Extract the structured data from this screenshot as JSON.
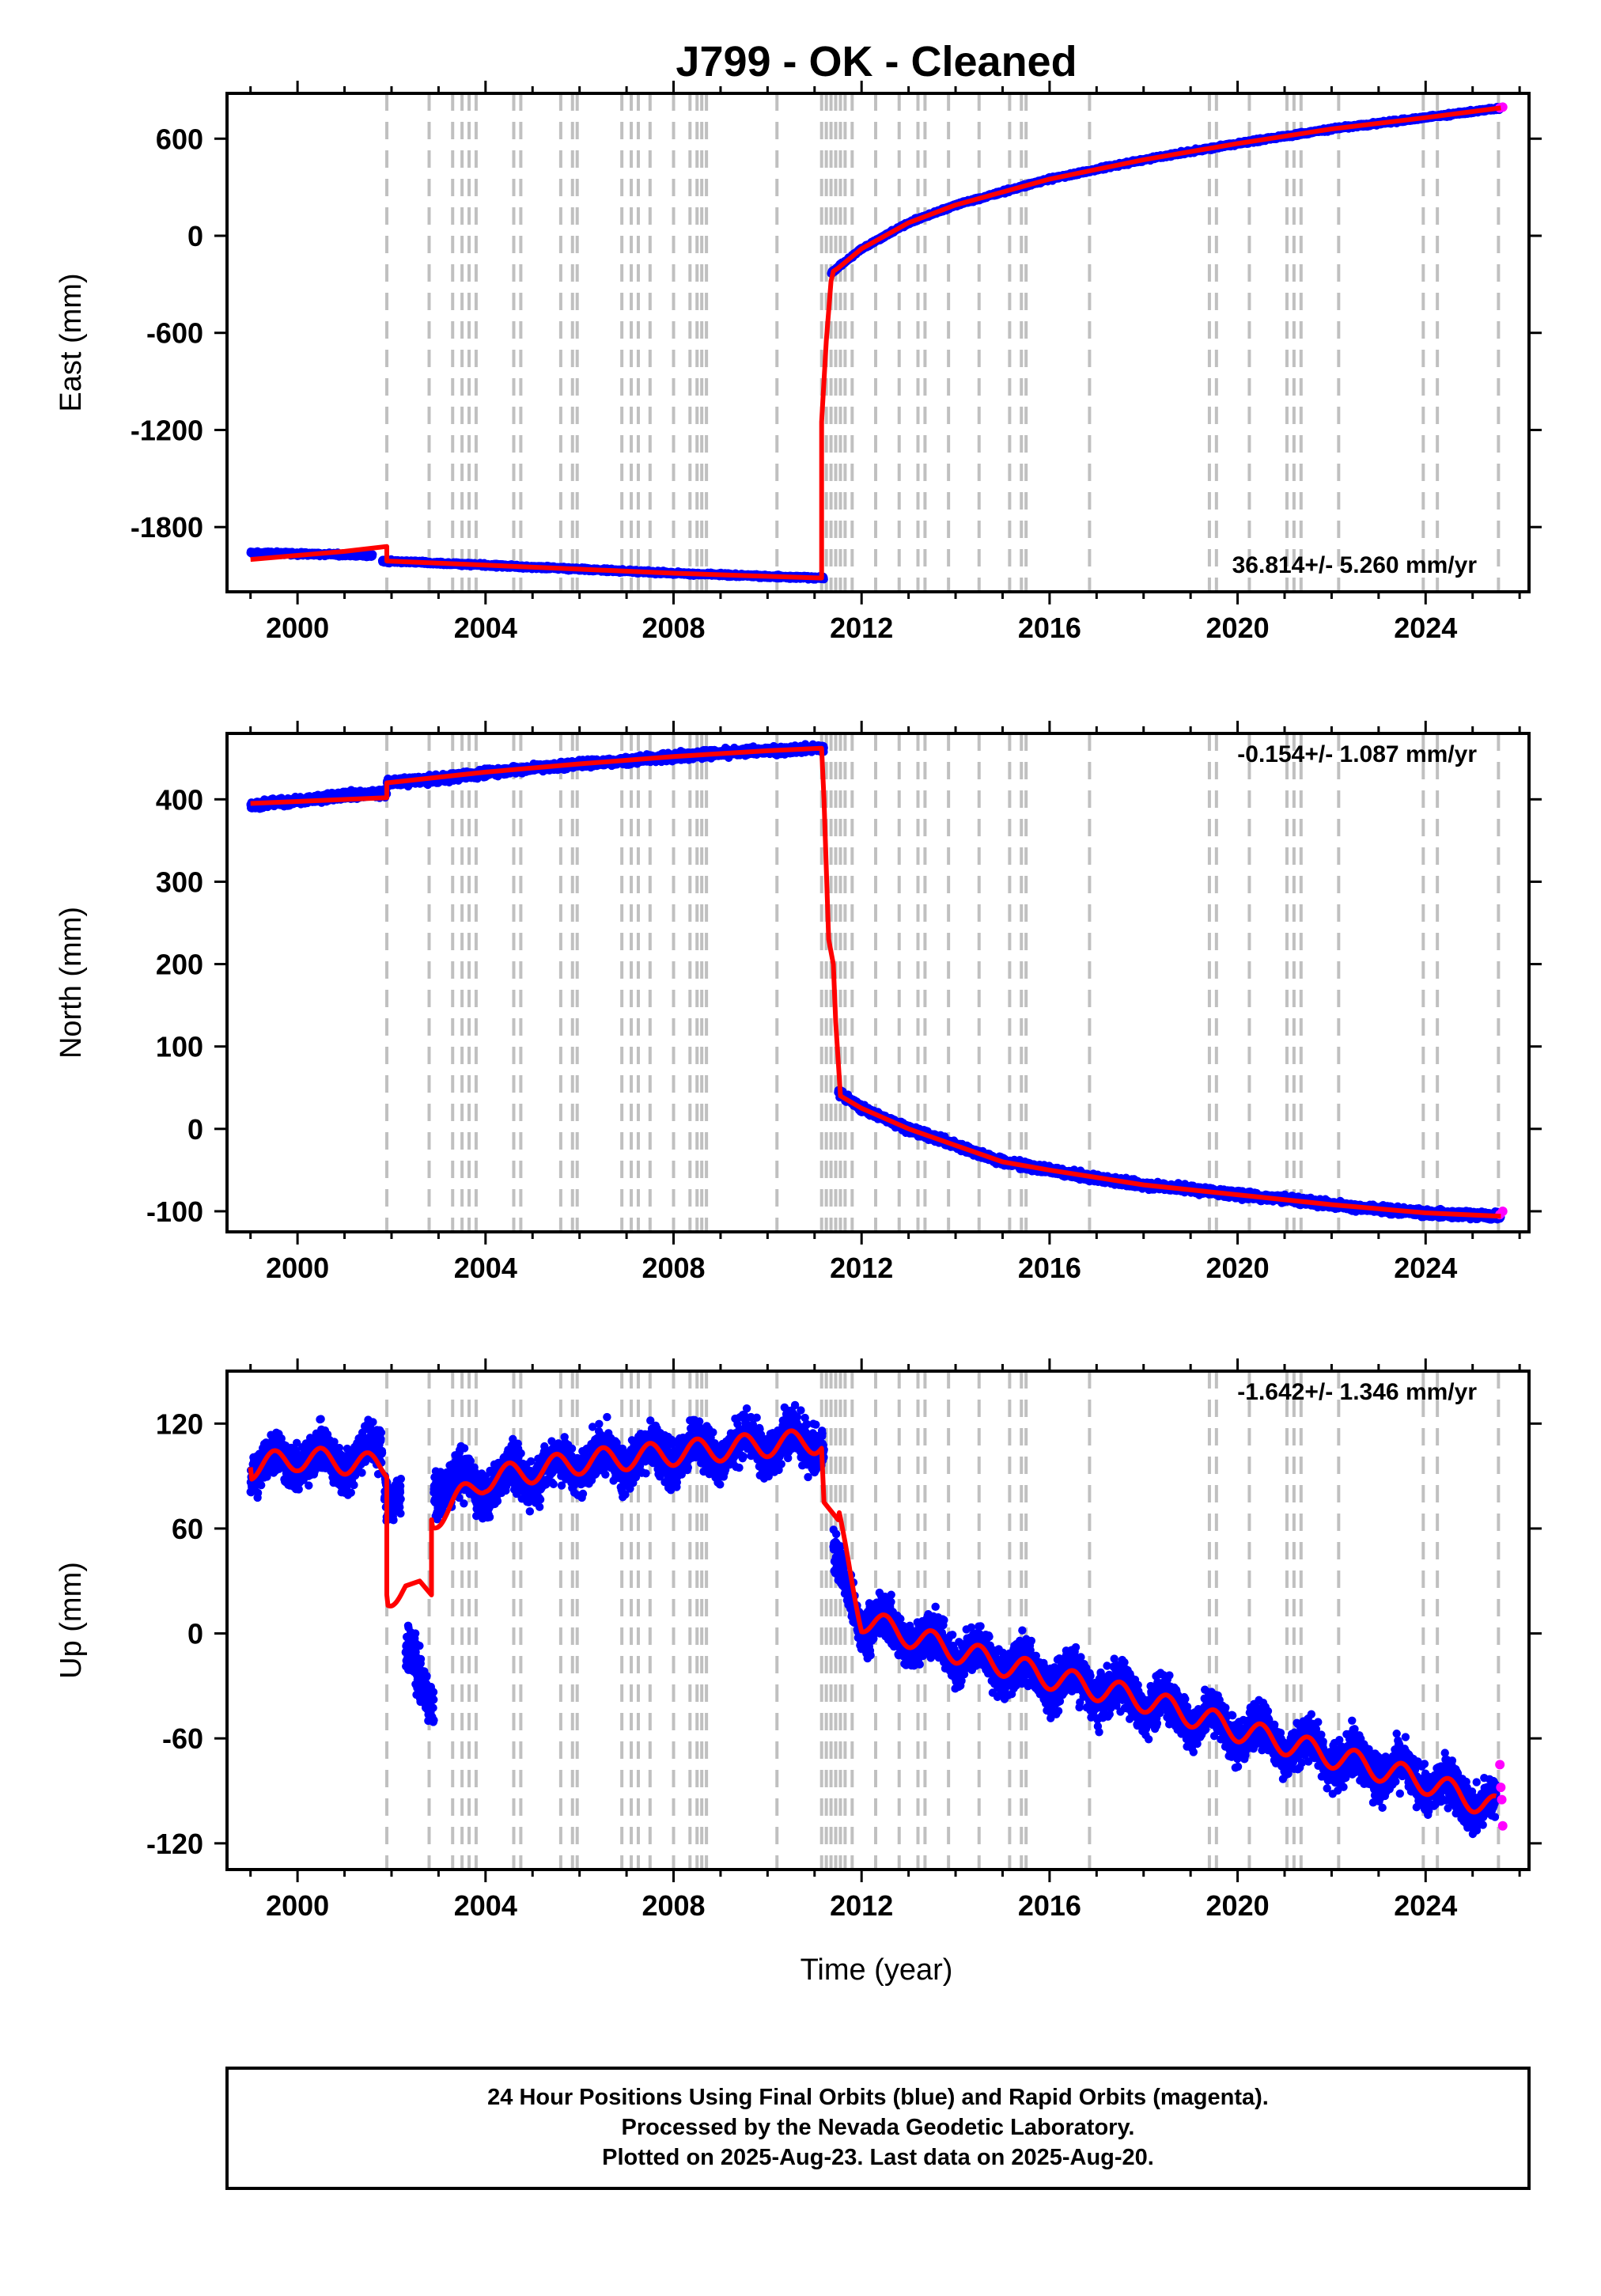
{
  "title": "J799  - OK - Cleaned",
  "xlabel": "Time (year)",
  "xticks": [
    2000,
    2004,
    2008,
    2012,
    2016,
    2020,
    2024
  ],
  "xlim": [
    1998.5,
    2026.2
  ],
  "colors": {
    "final_orbits": "#0000ff",
    "rapid_orbits": "#ff00ff",
    "model": "#ff0000",
    "event_lines": "#c0c0c0",
    "frame": "#000000"
  },
  "event_lines": [
    2001.9,
    2002.8,
    2003.3,
    2003.5,
    2003.65,
    2003.8,
    2004.6,
    2004.75,
    2005.6,
    2005.85,
    2005.95,
    2006.9,
    2007.1,
    2007.25,
    2007.5,
    2008.0,
    2008.35,
    2008.5,
    2008.6,
    2008.7,
    2010.2,
    2011.15,
    2011.25,
    2011.35,
    2011.45,
    2011.55,
    2011.65,
    2011.8,
    2012.3,
    2012.8,
    2013.2,
    2013.35,
    2013.85,
    2014.5,
    2015.15,
    2015.4,
    2015.5,
    2016.85,
    2019.4,
    2019.55,
    2020.25,
    2021.05,
    2021.2,
    2021.35,
    2022.15,
    2023.95,
    2024.25,
    2025.55
  ],
  "chart_data": [
    {
      "type": "scatter",
      "component": "east",
      "ylabel": "East (mm)",
      "yticks": [
        600,
        0,
        -600,
        -1200,
        -1800
      ],
      "ylim": [
        -2200,
        880
      ],
      "rate_label": "36.814+/- 5.260 mm/yr",
      "series": [
        {
          "name": "Final Orbits",
          "data_segments": [
            {
              "x": [
                1999.0,
                2000.0,
                2001.0,
                2001.6
              ],
              "y": [
                -1960,
                -1965,
                -1970,
                -1975
              ]
            },
            {
              "x": [
                2001.8,
                2004.0,
                2006.0,
                2008.0,
                2009.5,
                2011.2
              ],
              "y": [
                -2010,
                -2035,
                -2060,
                -2085,
                -2100,
                -2115
              ]
            },
            {
              "x": [
                2011.35,
                2012.0,
                2013.0,
                2014.0,
                2016.0,
                2018.0,
                2020.0,
                2022.0,
                2024.0,
                2025.6
              ],
              "y": [
                -230,
                -80,
                80,
                190,
                350,
                470,
                570,
                660,
                730,
                790
              ]
            }
          ]
        },
        {
          "name": "Rapid Orbits",
          "x": [
            2025.58,
            2025.64
          ],
          "y": [
            790,
            795
          ]
        },
        {
          "name": "Model",
          "x": [
            1999.0,
            2000.0,
            2001.0,
            2001.9,
            2001.9,
            2004.0,
            2006.0,
            2008.0,
            2009.5,
            2011.15,
            2011.15,
            2011.25,
            2011.35,
            2011.4,
            2011.5,
            2012.0,
            2013.0,
            2014.0,
            2016.0,
            2018.0,
            2020.0,
            2022.0,
            2024.0,
            2025.6
          ],
          "y": [
            -2000,
            -1975,
            -1950,
            -1920,
            -2010,
            -2035,
            -2060,
            -2085,
            -2100,
            -2115,
            -1150,
            -650,
            -280,
            -220,
            -200,
            -80,
            80,
            190,
            350,
            470,
            570,
            660,
            730,
            790
          ]
        }
      ]
    },
    {
      "type": "scatter",
      "component": "north",
      "ylabel": "North (mm)",
      "yticks": [
        400,
        300,
        200,
        100,
        0,
        -100
      ],
      "ylim": [
        -125,
        480
      ],
      "rate_label": "-0.154+/- 1.087 mm/yr",
      "series": [
        {
          "name": "Final Orbits",
          "data_segments": [
            {
              "x": [
                1999.0,
                2000.0,
                2001.0,
                2001.9
              ],
              "y": [
                393,
                398,
                405,
                408
              ]
            },
            {
              "x": [
                2001.9,
                2003.0,
                2004.0,
                2005.0,
                2006.0,
                2007.0,
                2008.0,
                2009.0,
                2010.0,
                2011.2
              ],
              "y": [
                420,
                425,
                432,
                438,
                443,
                447,
                452,
                456,
                459,
                462
              ]
            },
            {
              "x": [
                2011.5,
                2012.0,
                2013.0,
                2014.0,
                2015.0,
                2016.0,
                2017.0,
                2018.0,
                2019.0,
                2020.0,
                2021.0,
                2022.0,
                2023.0,
                2024.0,
                2025.6
              ],
              "y": [
                45,
                25,
                0,
                -20,
                -40,
                -50,
                -60,
                -68,
                -73,
                -80,
                -85,
                -92,
                -98,
                -102,
                -106
              ]
            }
          ]
        },
        {
          "name": "Rapid Orbits",
          "x": [
            2025.58,
            2025.64
          ],
          "y": [
            -104,
            -100
          ]
        },
        {
          "name": "Model",
          "x": [
            1999.0,
            2001.9,
            2001.9,
            2004.0,
            2006.0,
            2008.0,
            2010.0,
            2011.15,
            2011.2,
            2011.3,
            2011.4,
            2011.45,
            2011.55,
            2012.0,
            2013.0,
            2014.0,
            2015.0,
            2016.0,
            2018.0,
            2020.0,
            2022.0,
            2024.0,
            2025.6
          ],
          "y": [
            395,
            402,
            420,
            433,
            443,
            452,
            459,
            462,
            400,
            230,
            200,
            130,
            40,
            25,
            0,
            -20,
            -40,
            -50,
            -68,
            -80,
            -92,
            -102,
            -106
          ]
        }
      ]
    },
    {
      "type": "scatter",
      "component": "up",
      "ylabel": "Up (mm)",
      "xlabel": "Time (year)",
      "yticks": [
        120,
        60,
        0,
        -60,
        -120
      ],
      "ylim": [
        -135,
        150
      ],
      "rate_label": "-1.642+/- 1.346 mm/yr",
      "series": [
        {
          "name": "Final Orbits",
          "data_segments": [
            {
              "x": [
                1999.0,
                2000.0,
                2001.0,
                2001.8
              ],
              "y": [
                95,
                100,
                98,
                105
              ]
            },
            {
              "x": [
                2001.85,
                2002.2
              ],
              "y": [
                85,
                80
              ]
            },
            {
              "x": [
                2002.3,
                2002.6,
                2002.9
              ],
              "y": [
                -10,
                -30,
                -40
              ]
            },
            {
              "x": [
                2002.9,
                2004.0,
                2006.0,
                2008.0,
                2010.0,
                2011.2
              ],
              "y": [
                85,
                85,
                98,
                103,
                108,
                112
              ]
            },
            {
              "x": [
                2011.4,
                2012.0,
                2014.0,
                2016.0,
                2018.0,
                2020.0,
                2022.0,
                2024.0,
                2025.5
              ],
              "y": [
                40,
                8,
                -10,
                -25,
                -38,
                -55,
                -70,
                -85,
                -100
              ]
            }
          ]
        },
        {
          "name": "Rapid Orbits",
          "x": [
            2025.58,
            2025.6,
            2025.62,
            2025.64
          ],
          "y": [
            -75,
            -88,
            -95,
            -110
          ]
        },
        {
          "name": "Model",
          "x": [
            1999.0,
            2000.0,
            2001.0,
            2001.9,
            2001.9,
            2002.3,
            2002.6,
            2002.85,
            2002.85,
            2004.0,
            2006.0,
            2008.0,
            2010.0,
            2011.15,
            2011.2,
            2011.5,
            2012.0,
            2014.0,
            2016.0,
            2018.0,
            2020.0,
            2022.0,
            2024.0,
            2025.5
          ],
          "y": [
            95,
            100,
            98,
            95,
            22,
            25,
            30,
            22,
            65,
            88,
            98,
            103,
            108,
            110,
            75,
            65,
            8,
            -10,
            -25,
            -38,
            -55,
            -70,
            -85,
            -100
          ]
        }
      ]
    }
  ],
  "footer": {
    "line1": "24 Hour Positions Using Final Orbits (blue) and Rapid Orbits (magenta).",
    "line2": "Processed by the Nevada Geodetic Laboratory.",
    "line3": "Plotted on 2025-Aug-23. Last data on 2025-Aug-20."
  }
}
